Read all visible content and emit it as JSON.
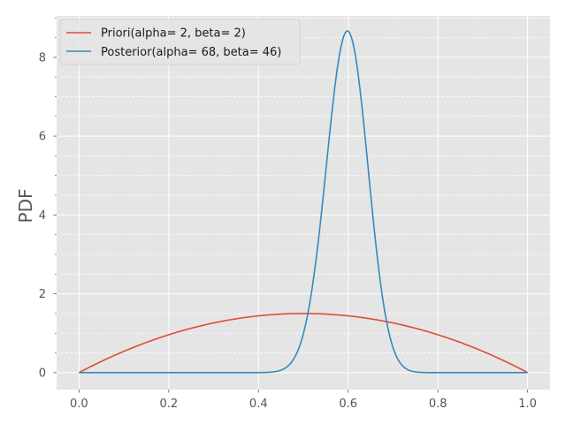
{
  "chart_data": {
    "type": "line",
    "title": "",
    "xlabel": "",
    "ylabel": "PDF",
    "xlim": [
      -0.05,
      1.05
    ],
    "ylim": [
      -0.43,
      9.05
    ],
    "xticks": [
      0.0,
      0.2,
      0.4,
      0.6,
      0.8,
      1.0
    ],
    "xtick_labels": [
      "0.0",
      "0.2",
      "0.4",
      "0.6",
      "0.8",
      "1.0"
    ],
    "yticks": [
      0,
      2,
      4,
      6,
      8
    ],
    "ytick_labels": [
      "0",
      "2",
      "4",
      "6",
      "8"
    ],
    "grid": true,
    "legend_position": "top-left",
    "colors": {
      "background": "#E5E5E5",
      "grid": "#FFFFFF",
      "tick": "#555555"
    },
    "series": [
      {
        "name": "Priori(alpha= 2, beta= 2)",
        "color": "#E24A33",
        "distribution": "beta",
        "alpha": 2,
        "beta": 2,
        "x": [
          0.0,
          0.1,
          0.2,
          0.3,
          0.4,
          0.5,
          0.6,
          0.7,
          0.8,
          0.9,
          1.0
        ],
        "y": [
          0.0,
          0.54,
          0.96,
          1.26,
          1.44,
          1.5,
          1.44,
          1.26,
          0.96,
          0.54,
          0.0
        ]
      },
      {
        "name": "Posterior(alpha= 68, beta= 46)",
        "color": "#348ABD",
        "distribution": "beta",
        "alpha": 68,
        "beta": 46,
        "x": [
          0.0,
          0.4,
          0.45,
          0.5,
          0.55,
          0.6,
          0.65,
          0.7,
          0.75,
          0.8,
          1.0
        ],
        "y": [
          0.0,
          0.0,
          0.09,
          1.1,
          4.85,
          8.61,
          5.12,
          0.98,
          0.06,
          0.0,
          0.0
        ]
      }
    ]
  }
}
